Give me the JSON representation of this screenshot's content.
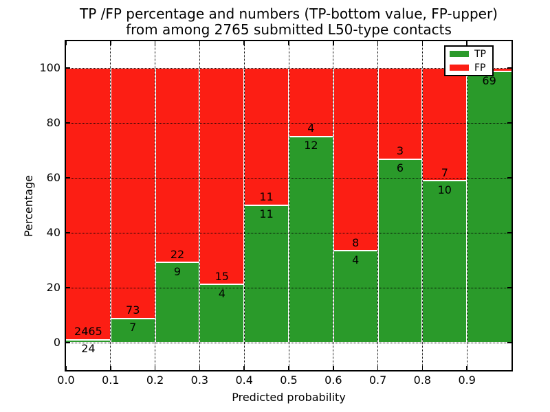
{
  "figure": {
    "title_line1": "TP /FP percentage and numbers (TP-bottom value, FP-upper)",
    "title_line2": "from among 2765 submitted L50-type contacts"
  },
  "legend": {
    "items": [
      {
        "label": "TP",
        "color": "#2a9a2a"
      },
      {
        "label": "FP",
        "color": "#fc1e14"
      }
    ]
  },
  "colors": {
    "tp": "#2a9a2a",
    "fp": "#fc1e14",
    "edge": "#ffffff",
    "grid": "#000000",
    "background": "#ffffff",
    "text": "#000000"
  },
  "chart_data": {
    "type": "bar",
    "stacked": true,
    "normalized_to_percent": true,
    "title": "TP /FP percentage and numbers (TP-bottom value, FP-upper) from among 2765 submitted L50-type contacts",
    "xlabel": "Predicted probability",
    "ylabel": "Percentage",
    "xlim": [
      0.0,
      1.0
    ],
    "ylim": [
      -10,
      110
    ],
    "x_tick_labels": [
      "0.0",
      "0.1",
      "0.2",
      "0.3",
      "0.4",
      "0.5",
      "0.6",
      "0.7",
      "0.8",
      "0.9"
    ],
    "y_tick_values": [
      0,
      20,
      40,
      60,
      80,
      100
    ],
    "grid": "dotted",
    "legend_position": "upper right",
    "total_contacts": 2765,
    "categories": [
      "0.0-0.1",
      "0.1-0.2",
      "0.2-0.3",
      "0.3-0.4",
      "0.4-0.5",
      "0.5-0.6",
      "0.6-0.7",
      "0.7-0.8",
      "0.8-0.9",
      "0.9-1.0"
    ],
    "series": [
      {
        "name": "TP",
        "color": "#2a9a2a",
        "values": [
          24,
          7,
          9,
          4,
          11,
          12,
          4,
          6,
          10,
          69
        ]
      },
      {
        "name": "FP",
        "color": "#fc1e14",
        "values": [
          2465,
          73,
          22,
          15,
          11,
          4,
          8,
          3,
          7,
          1
        ]
      }
    ]
  }
}
